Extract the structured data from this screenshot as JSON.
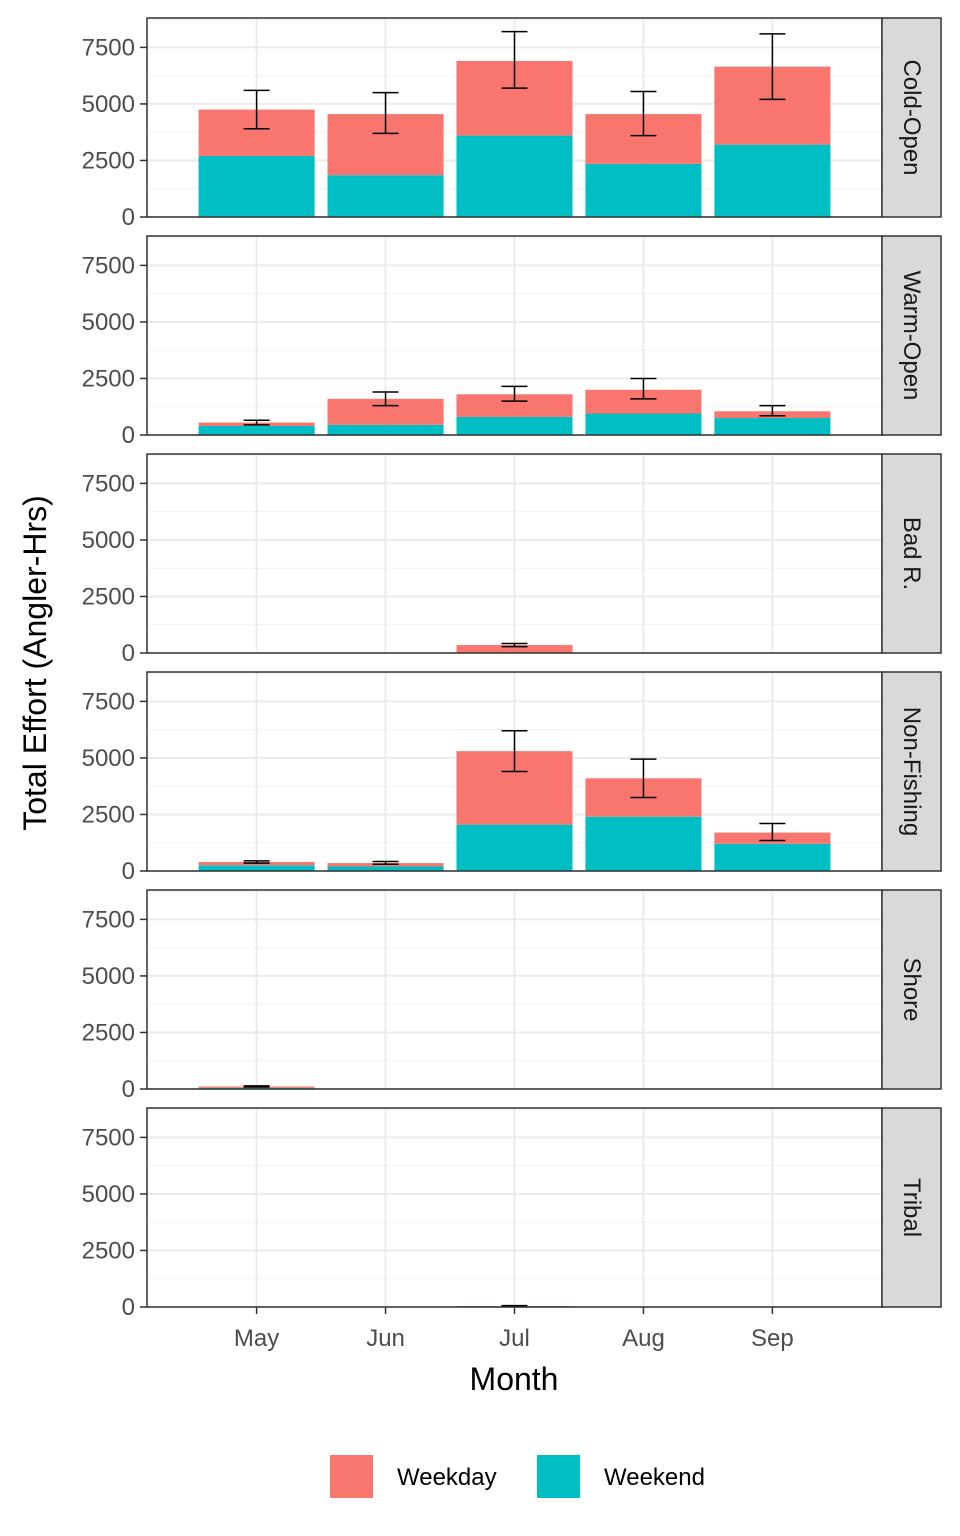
{
  "chart_data": {
    "type": "bar",
    "stacked": true,
    "facet": "rows",
    "xlabel": "Month",
    "ylabel": "Total Effort (Angler-Hrs)",
    "categories": [
      "May",
      "Jun",
      "Jul",
      "Aug",
      "Sep"
    ],
    "ylim": [
      0,
      8800
    ],
    "yticks": [
      0,
      2500,
      5000,
      7500
    ],
    "ytick_labels": [
      "0",
      "2500",
      "5000",
      "7500"
    ],
    "grid": true,
    "legend": {
      "position": "bottom",
      "entries": [
        {
          "label": "Weekday",
          "color": "#F8766D"
        },
        {
          "label": "Weekend",
          "color": "#00BFC4"
        }
      ]
    },
    "panels": [
      {
        "name": "Cold-Open",
        "weekend": [
          2700,
          1850,
          3600,
          2350,
          3200
        ],
        "weekday": [
          2050,
          2700,
          3300,
          2200,
          3450
        ],
        "error_low": [
          3900,
          3700,
          5700,
          3600,
          5200
        ],
        "error_high": [
          5600,
          5500,
          8200,
          5550,
          8100
        ]
      },
      {
        "name": "Warm-Open",
        "weekend": [
          400,
          450,
          800,
          950,
          750
        ],
        "weekday": [
          150,
          1150,
          1000,
          1050,
          300
        ],
        "error_low": [
          450,
          1300,
          1500,
          1600,
          850
        ],
        "error_high": [
          650,
          1900,
          2150,
          2500,
          1300
        ]
      },
      {
        "name": "Bad R.",
        "weekend": [
          0,
          0,
          0,
          0,
          0
        ],
        "weekday": [
          0,
          0,
          350,
          0,
          0
        ],
        "error_low": [
          null,
          null,
          280,
          null,
          null
        ],
        "error_high": [
          null,
          null,
          420,
          null,
          null
        ]
      },
      {
        "name": "Non-Fishing",
        "weekend": [
          250,
          200,
          2050,
          2400,
          1200
        ],
        "weekday": [
          150,
          150,
          3250,
          1700,
          500
        ],
        "error_low": [
          350,
          300,
          4400,
          3250,
          1350
        ],
        "error_high": [
          450,
          420,
          6200,
          4950,
          2100
        ]
      },
      {
        "name": "Shore",
        "weekend": [
          50,
          0,
          0,
          0,
          0
        ],
        "weekday": [
          60,
          0,
          0,
          0,
          0
        ],
        "error_low": [
          90,
          null,
          null,
          null,
          null
        ],
        "error_high": [
          140,
          null,
          null,
          null,
          null
        ]
      },
      {
        "name": "Tribal",
        "weekend": [
          0,
          0,
          0,
          0,
          0
        ],
        "weekday": [
          0,
          0,
          40,
          0,
          0
        ],
        "error_low": [
          null,
          null,
          20,
          null,
          null
        ],
        "error_high": [
          null,
          null,
          60,
          null,
          null
        ]
      }
    ]
  }
}
